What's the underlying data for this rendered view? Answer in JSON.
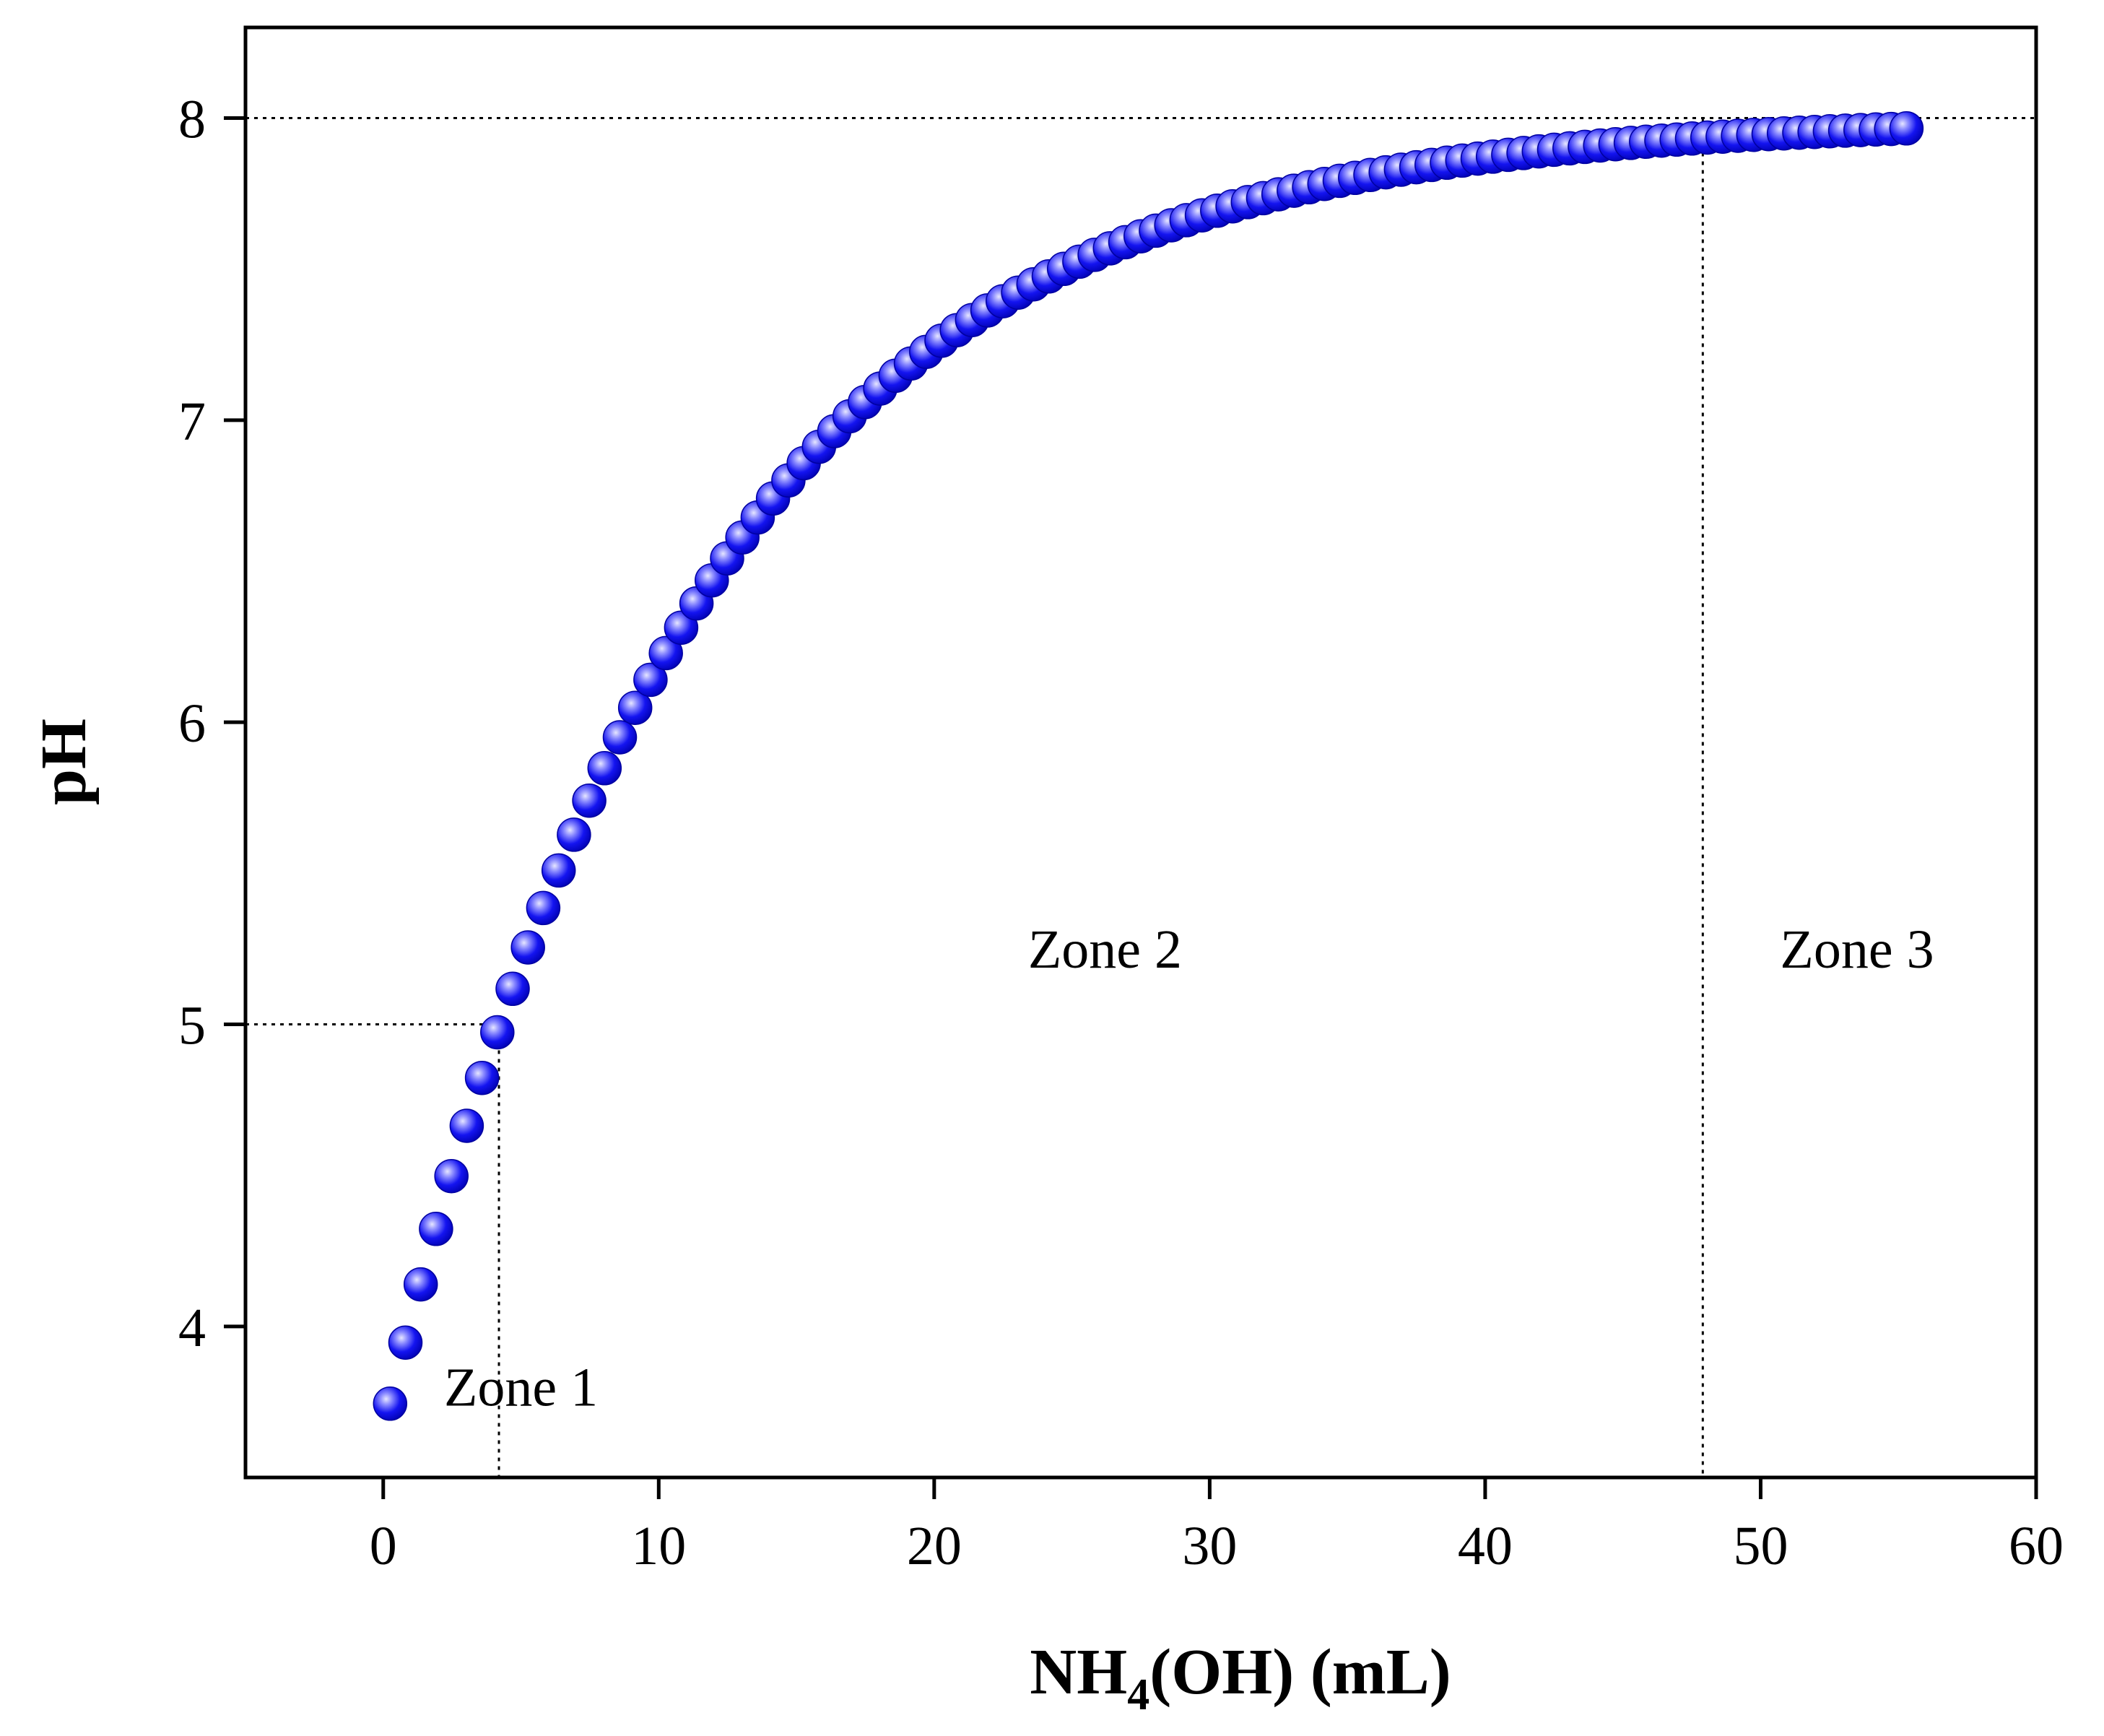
{
  "chart_data": {
    "type": "scatter",
    "title": "",
    "xlabel": {
      "main": "NH",
      "sub": "4",
      "rest": "(OH)  (mL)"
    },
    "ylabel": "pH",
    "xlim": [
      -5,
      60
    ],
    "ylim": [
      3.5,
      8.3
    ],
    "xticks": [
      "0",
      "10",
      "20",
      "30",
      "40",
      "50",
      "60"
    ],
    "yticks": [
      "4",
      "5",
      "6",
      "7",
      "8"
    ],
    "marker_color": "#1010ee",
    "marker_highlight": "#c8c8ff",
    "model": {
      "pH_max": 8.0,
      "pH_min": 3.65,
      "k": 0.0876,
      "x_start": 0.25,
      "x_end": 55.4,
      "step": 0.556
    },
    "reference_lines": {
      "pH_high": 8.0,
      "pH_low": 5.0,
      "x_zone1_end": 4.2,
      "x_zone2_end": 47.9
    },
    "zones": [
      {
        "label": "Zone 1",
        "x": 5.0,
        "y": 3.8
      },
      {
        "label": "Zone 2",
        "x": 26.2,
        "y": 5.25
      },
      {
        "label": "Zone 3",
        "x": 53.5,
        "y": 5.25
      }
    ]
  }
}
